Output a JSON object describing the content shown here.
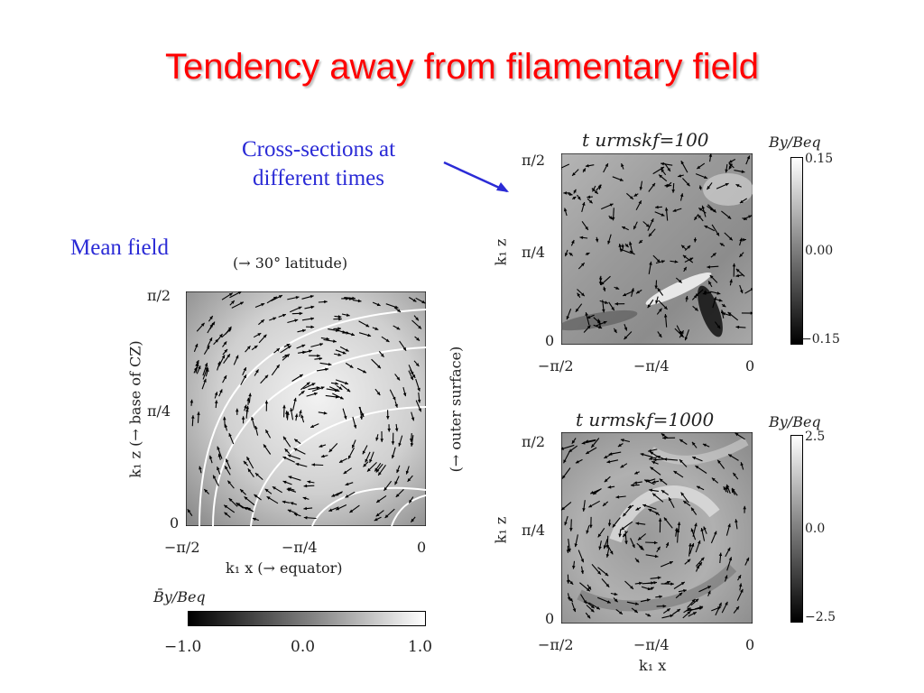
{
  "title": "Tendency away from filamentary field",
  "annotations": {
    "cross_sections": "Cross-sections at different times",
    "mean_field": "Mean field"
  },
  "mean_panel": {
    "top_label": "(→ 30° latitude)",
    "y_axis": "k₁ z  (→ base of CZ)",
    "right_label": "(→ outer surface)",
    "x_axis": "k₁ x   (→ equator)",
    "x_ticks": [
      "−π/2",
      "−π/4",
      "0"
    ],
    "y_ticks": [
      "π/2",
      "π/4",
      "0"
    ],
    "colorbar_label": "B̄y/Beq",
    "colorbar_ticks": [
      "−1.0",
      "0.0",
      "1.0"
    ]
  },
  "panel_t100": {
    "title": "t urmskf=100",
    "y_axis": "k₁ z",
    "x_ticks": [
      "−π/2",
      "−π/4",
      "0"
    ],
    "y_ticks": [
      "π/2",
      "π/4",
      "0"
    ],
    "colorbar_label": "By/Beq",
    "colorbar_ticks": [
      "0.15",
      "0.00",
      "−0.15"
    ]
  },
  "panel_t1000": {
    "title": "t urmskf=1000",
    "y_axis": "k₁ z",
    "x_axis": "k₁ x",
    "x_ticks": [
      "−π/2",
      "−π/4",
      "0"
    ],
    "y_ticks": [
      "π/2",
      "π/4",
      "0"
    ],
    "colorbar_label": "By/Beq",
    "colorbar_ticks": [
      "2.5",
      "0.0",
      "−2.5"
    ]
  }
}
